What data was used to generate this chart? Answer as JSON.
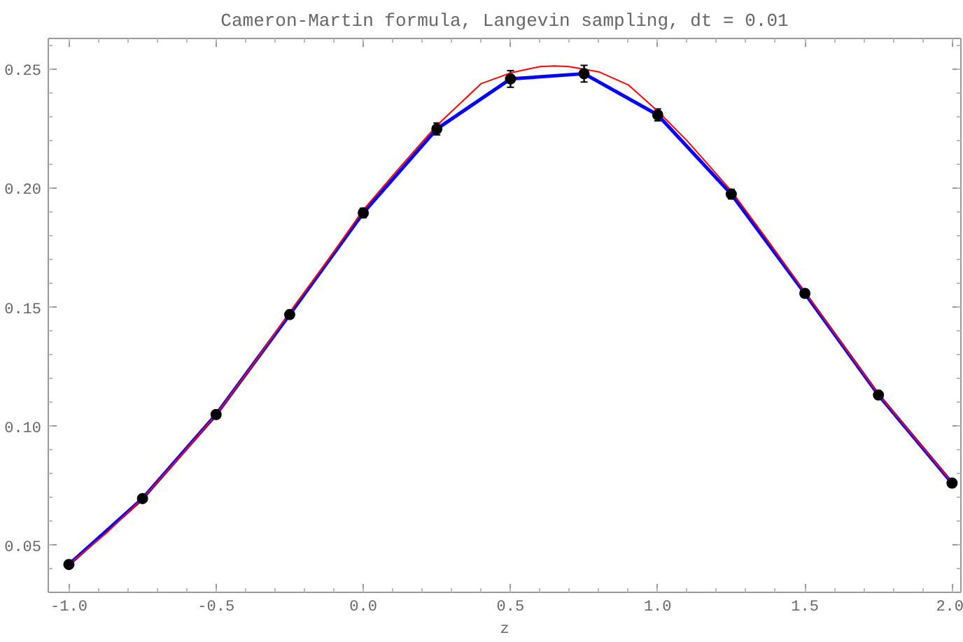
{
  "chart_data": {
    "type": "line",
    "title": "Cameron-Martin formula, Langevin sampling, dt = 0.01",
    "xlabel": "z",
    "xlim": [
      -1.07,
      2.03
    ],
    "ylim": [
      0.0303,
      0.263
    ],
    "xticks": [
      {
        "value": -1.0,
        "label": "-1.0"
      },
      {
        "value": -0.5,
        "label": "-0.5"
      },
      {
        "value": 0.0,
        "label": "0.0"
      },
      {
        "value": 0.5,
        "label": "0.5"
      },
      {
        "value": 1.0,
        "label": "1.0"
      },
      {
        "value": 1.5,
        "label": "1.5"
      },
      {
        "value": 2.0,
        "label": "2.0"
      }
    ],
    "yticks": [
      0.05,
      {
        "value": 0.1,
        "label": "0.10"
      },
      0.15,
      {
        "value": 0.2,
        "label": "0.20"
      },
      0.25
    ],
    "grid": false,
    "series": [
      {
        "color": "#ff0000",
        "x": [
          -1.0,
          -0.875,
          -0.75,
          -0.625,
          -0.5,
          -0.375,
          -0.25,
          -0.125,
          0.0,
          0.125,
          0.25,
          0.4,
          0.5,
          0.6,
          0.65,
          0.7,
          0.8,
          0.9,
          1.0,
          1.1,
          1.25,
          1.375,
          1.5,
          1.625,
          1.75,
          1.875,
          2.0
        ],
        "values": [
          0.042,
          0.055,
          0.0697,
          0.087,
          0.105,
          0.126,
          0.148,
          0.169,
          0.191,
          0.209,
          0.2265,
          0.244,
          0.2485,
          0.2512,
          0.2515,
          0.2512,
          0.249,
          0.2435,
          0.2325,
          0.22,
          0.199,
          0.178,
          0.1565,
          0.135,
          0.1135,
          0.095,
          0.0765
        ]
      },
      {
        "color": "#0000ff",
        "x": [
          -1.0,
          -0.75,
          -0.5,
          -0.25,
          0.0,
          0.25,
          0.5,
          0.75,
          1.0,
          1.25,
          1.5,
          1.75,
          2.0
        ],
        "values": [
          0.042,
          0.0697,
          0.105,
          0.147,
          0.1897,
          0.225,
          0.246,
          0.2482,
          0.2309,
          0.1976,
          0.1559,
          0.1132,
          0.0762
        ]
      },
      {
        "type": "scatter",
        "color": "#000000",
        "marker": "circle",
        "x": [
          -1.0,
          -0.75,
          -0.5,
          -0.25,
          0.0,
          0.25,
          0.5,
          0.75,
          1.0,
          1.25,
          1.5,
          1.75,
          2.0
        ],
        "values": [
          0.042,
          0.0697,
          0.105,
          0.147,
          0.1897,
          0.225,
          0.246,
          0.2482,
          0.2309,
          0.1976,
          0.1559,
          0.1132,
          0.0762
        ],
        "errors": [
          0.001,
          0.001,
          0.001,
          0.0015,
          0.002,
          0.0025,
          0.0035,
          0.0035,
          0.0025,
          0.002,
          0.0015,
          0.001,
          0.001
        ]
      }
    ]
  }
}
